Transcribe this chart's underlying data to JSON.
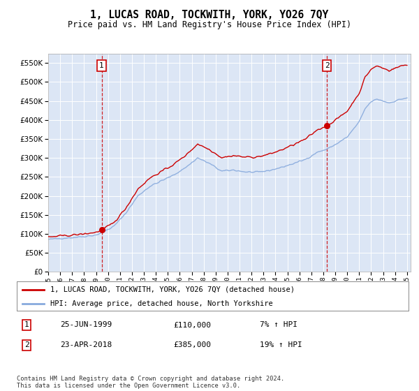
{
  "title": "1, LUCAS ROAD, TOCKWITH, YORK, YO26 7QY",
  "subtitle": "Price paid vs. HM Land Registry's House Price Index (HPI)",
  "plot_bg_color": "#dce6f5",
  "legend_label_red": "1, LUCAS ROAD, TOCKWITH, YORK, YO26 7QY (detached house)",
  "legend_label_blue": "HPI: Average price, detached house, North Yorkshire",
  "annotation1_label": "1",
  "annotation1_date": "25-JUN-1999",
  "annotation1_price": "£110,000",
  "annotation1_hpi": "7% ↑ HPI",
  "annotation1_year": 1999.47,
  "annotation2_label": "2",
  "annotation2_date": "23-APR-2018",
  "annotation2_price": "£385,000",
  "annotation2_hpi": "19% ↑ HPI",
  "annotation2_year": 2018.3,
  "footer": "Contains HM Land Registry data © Crown copyright and database right 2024.\nThis data is licensed under the Open Government Licence v3.0.",
  "ylim": [
    0,
    575000
  ],
  "yticks": [
    0,
    50000,
    100000,
    150000,
    200000,
    250000,
    300000,
    350000,
    400000,
    450000,
    500000,
    550000
  ],
  "red_color": "#cc0000",
  "blue_color": "#88aadd",
  "sale1_value": 110000,
  "sale2_value": 385000,
  "xlim_left": 1995,
  "xlim_right": 2025.3
}
